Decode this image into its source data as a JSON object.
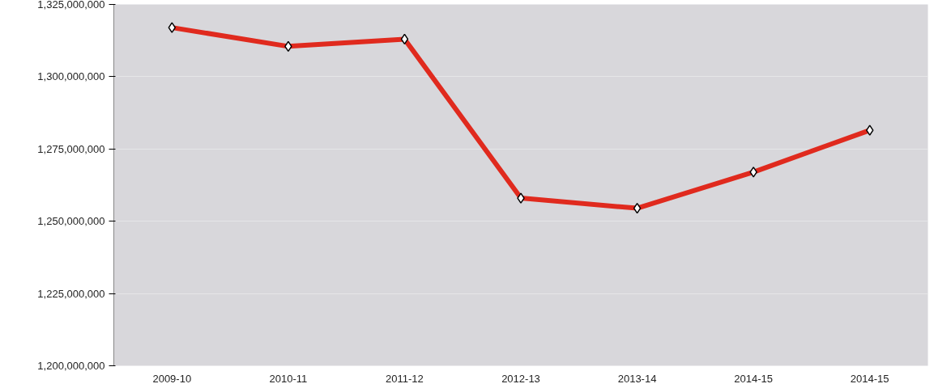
{
  "chart_data": {
    "type": "line",
    "categories": [
      "2009-10",
      "2010-11",
      "2011-12",
      "2012-13",
      "2013-14",
      "2014-15",
      "2014-15"
    ],
    "series": [
      {
        "color": "#e02a1e",
        "values": [
          1317000000,
          1310500000,
          1313000000,
          1258000000,
          1254500000,
          1267000000,
          1281500000
        ]
      }
    ],
    "ylim": [
      1200000000,
      1325000000
    ],
    "yticks": [
      {
        "value": 1200000000,
        "label": "1,200,000,000"
      },
      {
        "value": 1225000000,
        "label": "1,225,000,000"
      },
      {
        "value": 1250000000,
        "label": "1,250,000,000"
      },
      {
        "value": 1275000000,
        "label": "1,275,000,000"
      },
      {
        "value": 1300000000,
        "label": "1,300,000,000"
      },
      {
        "value": 1325000000,
        "label": "1,325,000,000"
      }
    ],
    "grid": "y",
    "marker": "diamond",
    "line_style": "solid"
  }
}
